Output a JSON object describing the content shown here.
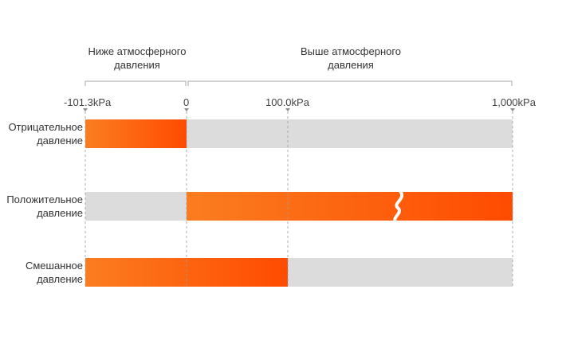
{
  "regions": {
    "below": "Ниже атмосферного\nдавления",
    "above": "Выше атмосферного\nдавления"
  },
  "ticks": [
    "-101.3kPa",
    "0",
    "100.0kPa",
    "1,000kPa"
  ],
  "rows": [
    {
      "label": "Отрицательное\nдавление",
      "range_kpa": [
        -101.3,
        0
      ]
    },
    {
      "label": "Положительное\nдавление",
      "range_kpa": [
        0,
        1000
      ],
      "axis_break": true
    },
    {
      "label": "Смешанное\nдавление",
      "range_kpa": [
        -101.3,
        100
      ]
    }
  ],
  "colors": {
    "fill_start": "#fb7d1f",
    "fill_end": "#ff4b00",
    "track": "#dcdcdc",
    "guide": "#9a9a9a",
    "text": "#333333"
  }
}
